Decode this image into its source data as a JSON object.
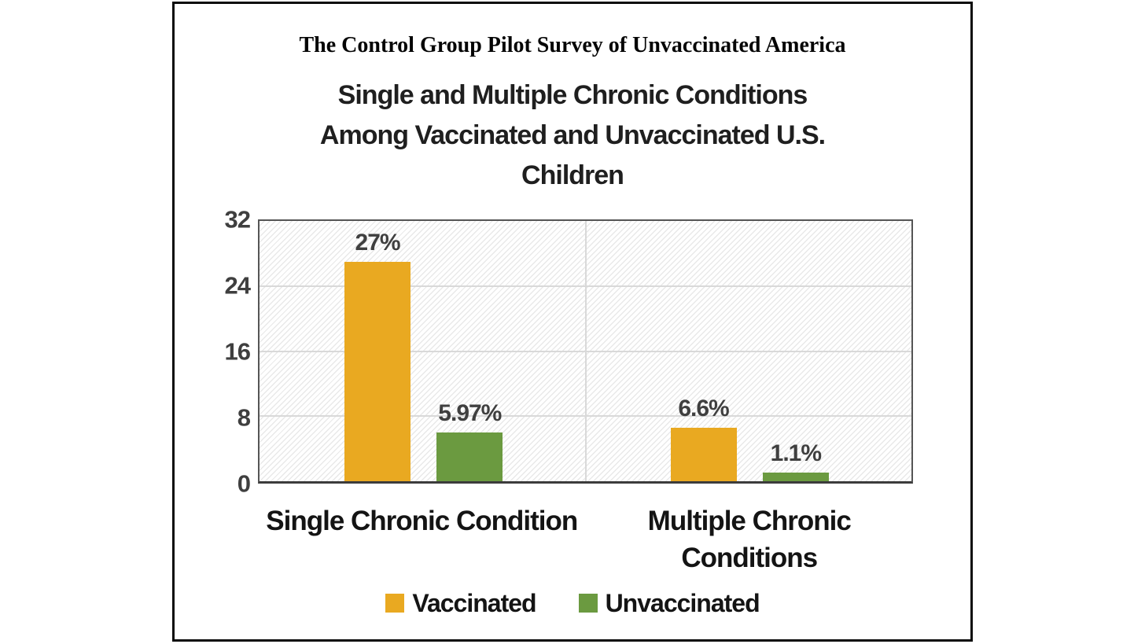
{
  "figure": {
    "header_title": "The Control Group Pilot Survey of Unvaccinated America"
  },
  "chart_data": {
    "type": "bar",
    "title": "Single and Multiple Chronic Conditions Among Vaccinated and Unvaccinated U.S. Children",
    "title_lines": [
      "Single and Multiple Chronic Conditions",
      "Among Vaccinated and Unvaccinated U.S.",
      "Children"
    ],
    "categories": [
      {
        "label": "Single Chronic Condition",
        "label_lines": [
          "Single Chronic Condition"
        ]
      },
      {
        "label": "Multiple Chronic Conditions",
        "label_lines": [
          "Multiple Chronic",
          "Conditions"
        ]
      }
    ],
    "series": [
      {
        "name": "Vaccinated",
        "color": "#E9A921",
        "values": [
          27,
          6.6
        ],
        "value_labels": [
          "27%",
          "6.6%"
        ]
      },
      {
        "name": "Unvaccinated",
        "color": "#6B9A40",
        "values": [
          5.97,
          1.1
        ],
        "value_labels": [
          "5.97%",
          "1.1%"
        ]
      }
    ],
    "xlabel": "",
    "ylabel": "",
    "ylim": [
      0,
      32
    ],
    "yticks": [
      0,
      8,
      16,
      24,
      32
    ],
    "grid": {
      "horizontal_ticks": [
        8,
        16,
        24
      ],
      "vertical_category_split": true
    },
    "legend_position": "bottom",
    "plot_background": "diagonal-hatch"
  },
  "colors": {
    "vaccinated": "#E9A921",
    "unvaccinated": "#6B9A40",
    "axis_text": "#3f3f3f",
    "gridline": "#d9d9d9"
  }
}
